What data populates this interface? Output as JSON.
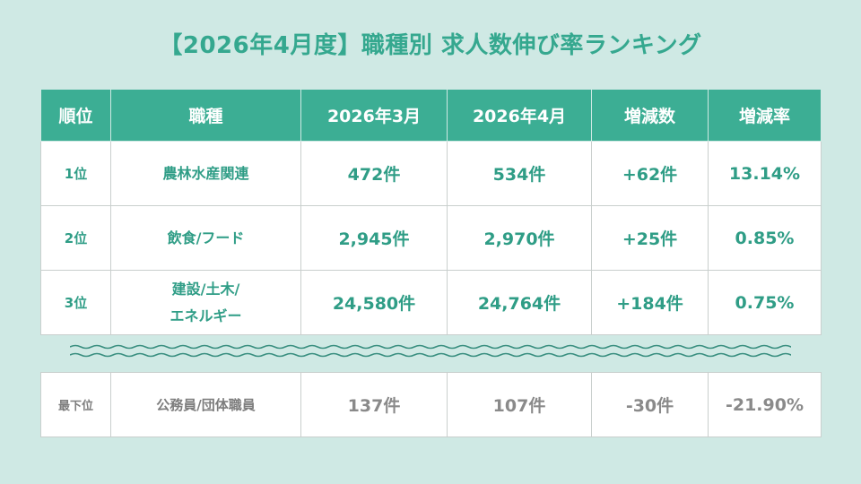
{
  "title": "【2026年4月度】職種別 求人数伸び率ランキング",
  "table": {
    "headers": [
      "順位",
      "職種",
      "2026年3月",
      "2026年4月",
      "増減数",
      "増減率"
    ],
    "rows": [
      {
        "rank": "1位",
        "job": "農林水産関連",
        "job_line2": "",
        "march": "472件",
        "april": "534件",
        "change": "+62件",
        "rate": "13.14%"
      },
      {
        "rank": "2位",
        "job": "飲食/フード",
        "job_line2": "",
        "march": "2,945件",
        "april": "2,970件",
        "change": "+25件",
        "rate": "0.85%"
      },
      {
        "rank": "3位",
        "job": "建設/土木/",
        "job_line2": "エネルギー",
        "march": "24,580件",
        "april": "24,764件",
        "change": "+184件",
        "rate": "0.75%"
      }
    ]
  },
  "lowest": {
    "rank": "最下位",
    "job": "公務員/団体職員",
    "march": "137件",
    "april": "107件",
    "change": "-30件",
    "rate": "-21.90%"
  },
  "colors": {
    "background": "#cfe9e4",
    "accent": "#3cae94",
    "text_accent": "#2f9d86",
    "muted": "#7d7d7d"
  }
}
